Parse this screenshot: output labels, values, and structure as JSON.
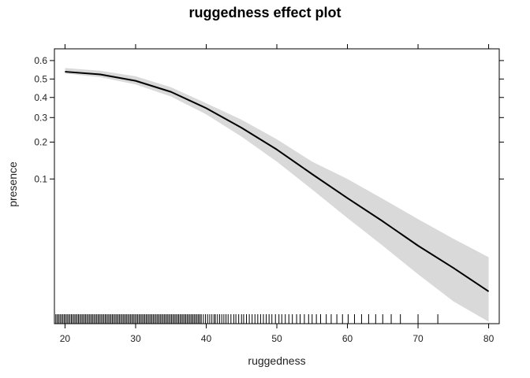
{
  "chart_data": {
    "type": "line",
    "title": "ruggedness effect plot",
    "xlabel": "ruggedness",
    "ylabel": "presence",
    "xlim": [
      18.5,
      81.5
    ],
    "ylim": [
      0.0046,
      0.66
    ],
    "y_scale": "logit",
    "x_ticks": [
      20,
      30,
      40,
      50,
      60,
      70,
      80
    ],
    "y_ticks": [
      0.1,
      0.2,
      0.3,
      0.4,
      0.5,
      0.6
    ],
    "grid": false,
    "series": [
      {
        "x": [
          20,
          25,
          30,
          35,
          40,
          45,
          50,
          55,
          60,
          65,
          70,
          75,
          80
        ],
        "y": [
          0.54,
          0.525,
          0.49,
          0.43,
          0.345,
          0.255,
          0.175,
          0.11,
          0.068,
          0.042,
          0.025,
          0.0155,
          0.0093
        ],
        "lower": [
          0.53,
          0.51,
          0.47,
          0.405,
          0.315,
          0.22,
          0.14,
          0.081,
          0.045,
          0.025,
          0.0135,
          0.0075,
          0.0048
        ],
        "upper": [
          0.56,
          0.545,
          0.515,
          0.455,
          0.37,
          0.29,
          0.21,
          0.14,
          0.1,
          0.067,
          0.044,
          0.029,
          0.0195
        ],
        "color": "#000000",
        "band_color": "#d9d9d9"
      }
    ],
    "rug_x": [
      18.7,
      18.9,
      19.1,
      19.3,
      19.5,
      19.7,
      19.9,
      20.1,
      20.3,
      20.5,
      20.7,
      20.9,
      21.1,
      21.3,
      21.5,
      21.7,
      21.9,
      22.1,
      22.3,
      22.5,
      22.7,
      22.9,
      23.1,
      23.3,
      23.5,
      23.7,
      23.9,
      24.1,
      24.3,
      24.5,
      24.7,
      24.9,
      25.1,
      25.3,
      25.5,
      25.7,
      25.9,
      26.1,
      26.3,
      26.5,
      26.7,
      26.9,
      27.1,
      27.3,
      27.5,
      27.7,
      27.9,
      28.1,
      28.3,
      28.5,
      28.7,
      28.9,
      29.1,
      29.3,
      29.5,
      29.7,
      29.9,
      30.1,
      30.3,
      30.5,
      30.7,
      30.9,
      31.1,
      31.3,
      31.5,
      31.7,
      31.9,
      32.1,
      32.3,
      32.5,
      32.7,
      32.9,
      33.1,
      33.3,
      33.5,
      33.7,
      33.9,
      34.1,
      34.3,
      34.5,
      34.7,
      34.9,
      35.1,
      35.3,
      35.5,
      35.7,
      35.9,
      36.1,
      36.3,
      36.5,
      36.7,
      36.9,
      37.1,
      37.3,
      37.5,
      37.7,
      37.9,
      38.1,
      38.3,
      38.5,
      38.7,
      38.9,
      39.1,
      39.3,
      39.6,
      39.9,
      40.2,
      40.5,
      40.8,
      41.1,
      41.3,
      41.6,
      41.9,
      42.2,
      42.5,
      42.8,
      43.1,
      43.5,
      43.9,
      44.2,
      44.6,
      45.0,
      45.3,
      45.7,
      46.1,
      46.5,
      46.9,
      47.3,
      47.7,
      48.1,
      48.5,
      48.9,
      49.3,
      49.8,
      50.3,
      50.7,
      51.2,
      51.7,
      52.2,
      52.8,
      53.3,
      53.9,
      54.5,
      55.0,
      55.6,
      56.2,
      57.0,
      57.7,
      58.5,
      59.3,
      60.1,
      61.0,
      62.0,
      63.0,
      64.0,
      65.0,
      66.2,
      67.5,
      70.0,
      72.8
    ]
  }
}
